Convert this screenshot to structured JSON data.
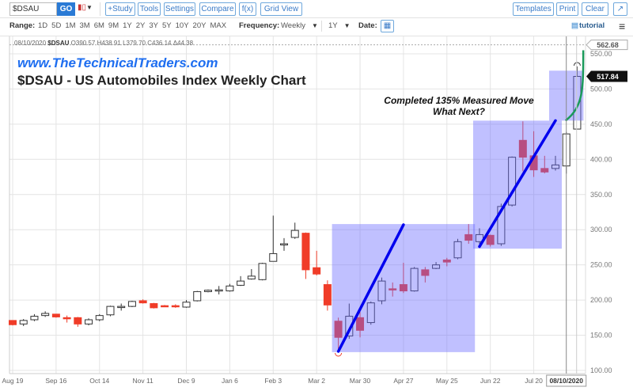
{
  "toolbar": {
    "symbol": "$DSAU",
    "go": "GO",
    "study": "+Study",
    "tools": "Tools",
    "settings": "Settings",
    "compare": "Compare",
    "fx": "f(x)",
    "grid_view": "Grid View",
    "templates": "Templates",
    "print": "Print",
    "clear": "Clear",
    "chart_type_icon": "candlestick-icon",
    "expand_icon": "expand-icon"
  },
  "range_bar": {
    "label": "Range:",
    "ranges": [
      "1D",
      "5D",
      "1M",
      "3M",
      "6M",
      "9M",
      "1Y",
      "2Y",
      "3Y",
      "5Y",
      "10Y",
      "20Y",
      "MAX"
    ],
    "frequency_label": "Frequency:",
    "frequency": "Weekly",
    "period": "1Y",
    "date_label": "Date:",
    "tutorial": "tutorial"
  },
  "legend": {
    "date": "08/10/2020",
    "symbol": "$DSAU",
    "open": "O390.57",
    "high": "H438.91",
    "low": "L379.70",
    "close": "C436.14",
    "change": "Δ44.38"
  },
  "overlay_text": {
    "website": "www.TheTechnicalTraders.com",
    "title": "$DSAU - US Automobiles Index Weekly Chart",
    "annotation_line1": "Completed 135% Measured Move",
    "annotation_line2": "What Next?"
  },
  "colors": {
    "up": "#ffffff",
    "down": "#f03c28",
    "box": "#6a6aff",
    "trend": "#0000ee",
    "projection": "#1a9a5a",
    "link": "#1e6ef0"
  },
  "chart_data": {
    "type": "candlestick",
    "frequency": "weekly",
    "ylim": [
      100,
      562.68
    ],
    "y_ticks": [
      "100.00",
      "150.00",
      "200.00",
      "250.00",
      "300.00",
      "350.00",
      "400.00",
      "450.00",
      "500.00",
      "550.00"
    ],
    "x_tick_labels": [
      "Aug 19",
      "Sep 16",
      "Oct 14",
      "Nov 11",
      "Dec 9",
      "Jan 6",
      "Feb 3",
      "Mar 2",
      "Mar 30",
      "Apr 27",
      "May 25",
      "Jun 22",
      "Jul 20"
    ],
    "x_tick_dates": [
      "2019-08-19",
      "2019-09-16",
      "2019-10-14",
      "2019-11-11",
      "2019-12-09",
      "2020-01-06",
      "2020-02-03",
      "2020-03-02",
      "2020-03-30",
      "2020-04-27",
      "2020-05-25",
      "2020-06-22",
      "2020-07-20"
    ],
    "crosshair_date_label": "08/10/2020",
    "high_label": "562.68",
    "last_price_label": "517.84",
    "grid": true,
    "candles": [
      [
        "2019-08-19",
        171,
        171,
        164,
        165
      ],
      [
        "2019-08-26",
        166,
        173,
        163,
        171
      ],
      [
        "2019-09-02",
        172,
        180,
        170,
        177
      ],
      [
        "2019-09-09",
        178,
        184,
        176,
        181
      ],
      [
        "2019-09-16",
        180,
        180,
        175,
        176
      ],
      [
        "2019-09-23",
        175,
        178,
        168,
        174
      ],
      [
        "2019-09-30",
        175,
        176,
        162,
        166
      ],
      [
        "2019-10-07",
        166,
        174,
        164,
        172
      ],
      [
        "2019-10-14",
        172,
        180,
        170,
        178
      ],
      [
        "2019-10-21",
        179,
        192,
        177,
        191
      ],
      [
        "2019-10-28",
        190,
        195,
        185,
        191
      ],
      [
        "2019-11-04",
        191,
        199,
        190,
        198
      ],
      [
        "2019-11-11",
        199,
        201,
        195,
        196
      ],
      [
        "2019-11-18",
        195,
        196,
        188,
        189
      ],
      [
        "2019-11-25",
        192,
        193,
        190,
        191
      ],
      [
        "2019-12-02",
        192,
        194,
        189,
        191.5
      ],
      [
        "2019-12-09",
        190,
        200,
        189,
        197
      ],
      [
        "2019-12-16",
        199,
        213,
        198,
        212
      ],
      [
        "2019-12-23",
        212,
        215,
        211,
        214
      ],
      [
        "2019-12-30",
        214,
        220,
        208,
        214.5
      ],
      [
        "2020-01-06",
        213,
        223,
        212,
        220
      ],
      [
        "2020-01-13",
        221,
        234,
        220,
        227
      ],
      [
        "2020-01-20",
        230,
        244,
        229,
        234
      ],
      [
        "2020-01-27",
        229,
        253,
        228,
        252
      ],
      [
        "2020-02-03",
        255,
        320,
        255,
        266
      ],
      [
        "2020-02-10",
        279,
        288,
        270,
        280
      ],
      [
        "2020-02-17",
        289,
        310,
        287,
        299
      ],
      [
        "2020-02-24",
        295,
        296,
        230,
        243
      ],
      [
        "2020-03-02",
        246,
        270,
        235,
        237
      ],
      [
        "2020-03-09",
        222,
        228,
        185,
        193
      ],
      [
        "2020-03-16",
        170,
        175,
        127,
        147
      ],
      [
        "2020-03-23",
        149,
        195,
        145,
        177
      ],
      [
        "2020-03-30",
        175,
        183,
        147,
        157
      ],
      [
        "2020-04-06",
        168,
        198,
        165,
        196
      ],
      [
        "2020-04-13",
        199,
        232,
        194,
        227
      ],
      [
        "2020-04-20",
        216,
        225,
        205,
        215
      ],
      [
        "2020-04-27",
        222,
        253,
        210,
        213
      ],
      [
        "2020-05-04",
        213,
        247,
        212,
        245
      ],
      [
        "2020-05-11",
        243,
        247,
        225,
        235
      ],
      [
        "2020-05-18",
        245,
        254,
        244,
        250
      ],
      [
        "2020-05-25",
        257,
        260,
        248,
        254
      ],
      [
        "2020-06-01",
        260,
        287,
        258,
        283
      ],
      [
        "2020-06-08",
        293,
        308,
        280,
        285
      ],
      [
        "2020-06-15",
        283,
        302,
        280,
        293
      ],
      [
        "2020-06-22",
        292,
        293,
        276,
        279
      ],
      [
        "2020-06-29",
        280,
        337,
        277,
        333
      ],
      [
        "2020-07-06",
        335,
        404,
        333,
        403
      ],
      [
        "2020-07-13",
        427,
        454,
        383,
        403
      ],
      [
        "2020-07-20",
        405,
        440,
        375,
        385
      ],
      [
        "2020-07-27",
        387,
        405,
        380,
        382
      ],
      [
        "2020-08-03",
        387,
        405,
        384,
        392
      ],
      [
        "2020-08-10",
        390.57,
        438.91,
        379.7,
        436.14
      ],
      [
        "2020-08-17",
        443,
        532,
        443,
        517.84
      ]
    ],
    "annotations": {
      "boxes": [
        {
          "from": "2020-03-16",
          "to": "2020-06-08",
          "price_low": 126,
          "price_high": 308
        },
        {
          "from": "2020-06-15",
          "to": "2020-08-03",
          "price_low": 273,
          "price_high": 455
        },
        {
          "from": "2020-08-03",
          "to": "2020-08-17",
          "price_low": 455,
          "price_high": 526
        }
      ],
      "trend_lines": [
        {
          "from": [
            "2020-03-16",
            127
          ],
          "to": [
            "2020-04-27",
            307
          ]
        },
        {
          "from": [
            "2020-06-15",
            276
          ],
          "to": [
            "2020-08-03",
            455
          ]
        }
      ],
      "projection_curve": [
        [
          "2020-08-10",
          455
        ],
        [
          "2020-08-17",
          475
        ],
        [
          "2020-08-24",
          500
        ],
        [
          "2020-08-24",
          555
        ]
      ]
    }
  }
}
